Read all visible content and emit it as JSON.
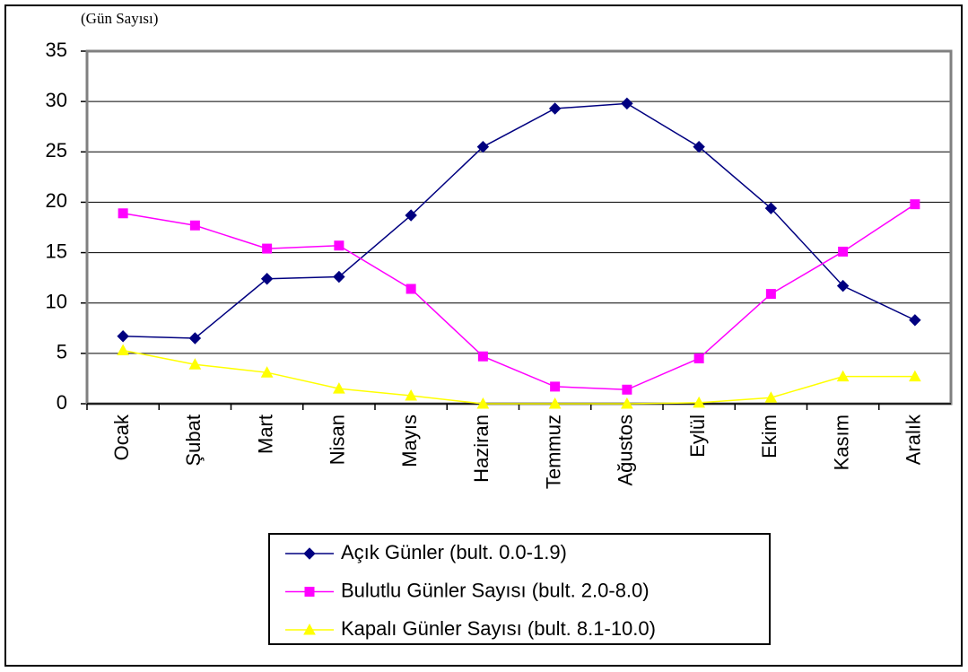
{
  "chart_data": {
    "type": "line",
    "y_axis_label": "(Gün Sayısı)",
    "categories": [
      "Ocak",
      "Şubat",
      "Mart",
      "Nisan",
      "Mayıs",
      "Haziran",
      "Temmuz",
      "Ağustos",
      "Eylül",
      "Ekim",
      "Kasım",
      "Aralık"
    ],
    "series": [
      {
        "name": "Açık Günler (bult. 0.0-1.9)",
        "color": "#000080",
        "marker": "diamond",
        "values": [
          6.7,
          6.5,
          12.4,
          12.6,
          18.7,
          25.5,
          29.3,
          29.8,
          25.5,
          19.4,
          11.7,
          8.3
        ]
      },
      {
        "name": "Bulutlu Günler Sayısı (bult. 2.0-8.0)",
        "color": "#ff00ff",
        "marker": "square",
        "values": [
          18.9,
          17.7,
          15.4,
          15.7,
          11.4,
          4.7,
          1.7,
          1.4,
          4.5,
          10.9,
          15.1,
          19.8
        ]
      },
      {
        "name": "Kapalı Günler Sayısı (bult. 8.1-10.0)",
        "color": "#ffff00",
        "marker": "triangle",
        "values": [
          5.3,
          3.9,
          3.1,
          1.5,
          0.8,
          0.0,
          0.0,
          0.0,
          0.1,
          0.6,
          2.7,
          2.7
        ]
      }
    ],
    "ylim": [
      0,
      35
    ],
    "yticks": [
      0,
      5,
      10,
      15,
      20,
      25,
      30,
      35
    ],
    "grid": true
  }
}
